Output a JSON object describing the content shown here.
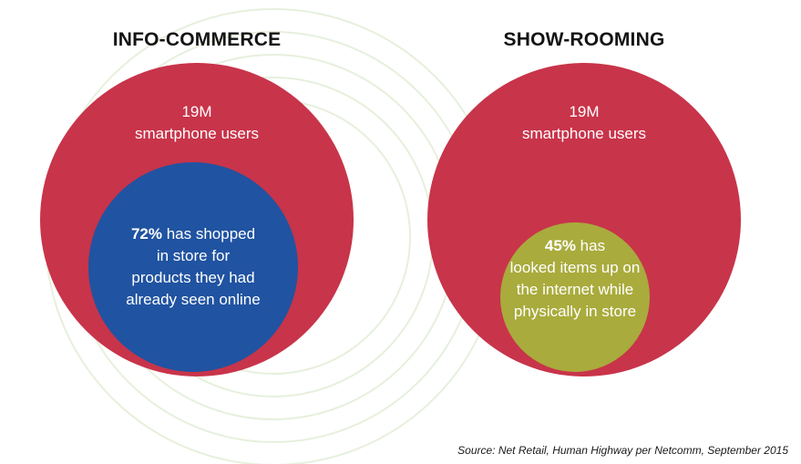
{
  "panels": [
    {
      "title": "INFO-COMMERCE",
      "outer": {
        "value": "19M",
        "text": "smartphone users"
      },
      "inner": {
        "percent": "72%",
        "line1": " has shopped",
        "rest": [
          "in store for",
          "products they had",
          "already seen online"
        ]
      }
    },
    {
      "title": "SHOW-ROOMING",
      "outer": {
        "value": "19M",
        "text": "smartphone users"
      },
      "inner": {
        "percent": "45%",
        "line1": " has",
        "rest": [
          "looked items up on",
          "the internet while",
          "physically in store"
        ]
      }
    }
  ],
  "source": "Source: Net Retail, Human Highway per Netcomm, September 2015",
  "colors": {
    "outer_circle": "#c8344a",
    "inner_circle_left": "#2053a1",
    "inner_circle_right": "#a9ab3c",
    "background_lines": "#e6f0dc"
  }
}
